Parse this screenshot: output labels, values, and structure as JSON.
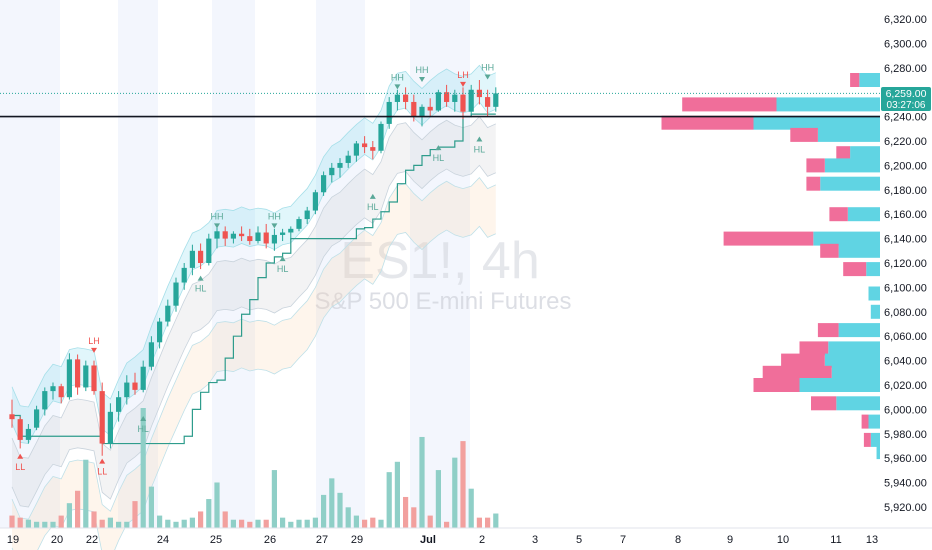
{
  "chart_data": {
    "type": "candlestick",
    "watermark": {
      "symbol": "ES1!, 4h",
      "description": "S&P 500 E-mini Futures"
    },
    "y_axis": {
      "ticks": [
        5920,
        5940,
        5960,
        5980,
        6000,
        6020,
        6040,
        6060,
        6080,
        6100,
        6120,
        6140,
        6160,
        6180,
        6200,
        6220,
        6240,
        6260,
        6280,
        6300,
        6320
      ],
      "tick_labels": [
        "5,920.00",
        "5,940.00",
        "5,960.00",
        "5,980.00",
        "6,000.00",
        "6,020.00",
        "6,040.00",
        "6,060.00",
        "6,080.00",
        "6,100.00",
        "6,120.00",
        "6,140.00",
        "6,160.00",
        "6,180.00",
        "6,200.00",
        "6,220.00",
        "6,240.00",
        "6,260.00",
        "6,280.00",
        "6,300.00",
        "6,320.00"
      ],
      "range": [
        5912,
        6335
      ]
    },
    "x_axis": {
      "tick_labels": [
        "19",
        "20",
        "22",
        "24",
        "25",
        "26",
        "27",
        "29",
        "Jul",
        "2",
        "3",
        "5",
        "7",
        "8",
        "9",
        "10",
        "11",
        "13"
      ]
    },
    "price_badge": {
      "price": "6,259.00",
      "countdown": "03:27:06",
      "color": "#26a69a"
    },
    "horizontal_line": {
      "price": 6240,
      "color": "#131722"
    },
    "colors": {
      "up": "#26a69a",
      "down": "#ef5350",
      "vol_up": "#8fcfc7",
      "vol_down": "#f2a09e",
      "vp_up": "#60d4e3",
      "vp_down": "#f06e9a",
      "vp_up_light": "#8fe4ee",
      "vp_down_light": "#f5a8c3"
    },
    "candles": [
      [
        5996,
        6008,
        5985,
        5992
      ],
      [
        5992,
        5994,
        5968,
        5975
      ],
      [
        5975,
        5988,
        5972,
        5984
      ],
      [
        5985,
        6003,
        5983,
        6000
      ],
      [
        6000,
        6018,
        5995,
        6015
      ],
      [
        6015,
        6022,
        6008,
        6019
      ],
      [
        6019,
        6021,
        6005,
        6010
      ],
      [
        6010,
        6046,
        6008,
        6041
      ],
      [
        6041,
        6045,
        6012,
        6018
      ],
      [
        6018,
        6040,
        6015,
        6036
      ],
      [
        6036,
        6040,
        6012,
        6015
      ],
      [
        6015,
        6022,
        5962,
        5972
      ],
      [
        5972,
        6005,
        5968,
        5998
      ],
      [
        5998,
        6015,
        5990,
        6010
      ],
      [
        6010,
        6028,
        6004,
        6022
      ],
      [
        6022,
        6030,
        6012,
        6016
      ],
      [
        6016,
        6040,
        6014,
        6035
      ],
      [
        6035,
        6060,
        6032,
        6055
      ],
      [
        6055,
        6075,
        6050,
        6072
      ],
      [
        6072,
        6090,
        6068,
        6085
      ],
      [
        6085,
        6108,
        6080,
        6104
      ],
      [
        6104,
        6120,
        6098,
        6116
      ],
      [
        6116,
        6135,
        6110,
        6130
      ],
      [
        6130,
        6136,
        6115,
        6120
      ],
      [
        6120,
        6144,
        6118,
        6140
      ],
      [
        6140,
        6150,
        6132,
        6146
      ],
      [
        6146,
        6150,
        6134,
        6140
      ],
      [
        6140,
        6146,
        6136,
        6144
      ],
      [
        6144,
        6150,
        6138,
        6142
      ],
      [
        6142,
        6148,
        6135,
        6138
      ],
      [
        6138,
        6150,
        6136,
        6145
      ],
      [
        6145,
        6152,
        6132,
        6136
      ],
      [
        6136,
        6148,
        6130,
        6143
      ],
      [
        6143,
        6148,
        6138,
        6145
      ],
      [
        6145,
        6150,
        6139,
        6148
      ],
      [
        6148,
        6158,
        6146,
        6156
      ],
      [
        6156,
        6166,
        6152,
        6163
      ],
      [
        6163,
        6180,
        6160,
        6178
      ],
      [
        6178,
        6195,
        6175,
        6192
      ],
      [
        6192,
        6202,
        6186,
        6198
      ],
      [
        6198,
        6206,
        6190,
        6202
      ],
      [
        6202,
        6212,
        6198,
        6208
      ],
      [
        6208,
        6220,
        6203,
        6218
      ],
      [
        6218,
        6224,
        6210,
        6215
      ],
      [
        6215,
        6220,
        6205,
        6212
      ],
      [
        6212,
        6236,
        6210,
        6234
      ],
      [
        6234,
        6256,
        6230,
        6252
      ],
      [
        6252,
        6262,
        6245,
        6258
      ],
      [
        6258,
        6264,
        6246,
        6252
      ],
      [
        6252,
        6258,
        6236,
        6240
      ],
      [
        6240,
        6250,
        6232,
        6248
      ],
      [
        6248,
        6255,
        6240,
        6245
      ],
      [
        6245,
        6262,
        6244,
        6260
      ],
      [
        6260,
        6266,
        6248,
        6252
      ],
      [
        6252,
        6262,
        6244,
        6258
      ],
      [
        6258,
        6264,
        6238,
        6244
      ],
      [
        6244,
        6266,
        6240,
        6262
      ],
      [
        6262,
        6270,
        6250,
        6256
      ],
      [
        6256,
        6262,
        6240,
        6248
      ],
      [
        6248,
        6264,
        6244,
        6259
      ]
    ],
    "volume": [
      6,
      5,
      4,
      3,
      3,
      3,
      6,
      12,
      18,
      33,
      8,
      4,
      5,
      3,
      3,
      13,
      58,
      20,
      6,
      4,
      3,
      4,
      5,
      8,
      14,
      22,
      8,
      4,
      4,
      3,
      4,
      4,
      28,
      5,
      3,
      4,
      4,
      5,
      16,
      24,
      17,
      10,
      6,
      4,
      5,
      4,
      27,
      32,
      15,
      10,
      44,
      6,
      28,
      3,
      34,
      42,
      19,
      5,
      5,
      7
    ],
    "volume_profile": [
      {
        "price": 6270,
        "up": 18,
        "down": 8
      },
      {
        "price": 6250,
        "up": 90,
        "down": 82
      },
      {
        "price": 6235,
        "up": 110,
        "down": 80
      },
      {
        "price": 6225,
        "up": 54,
        "down": 24
      },
      {
        "price": 6210,
        "up": 26,
        "down": 12
      },
      {
        "price": 6200,
        "up": 48,
        "down": 16
      },
      {
        "price": 6185,
        "up": 52,
        "down": 12
      },
      {
        "price": 6160,
        "up": 28,
        "down": 16
      },
      {
        "price": 6140,
        "up": 58,
        "down": 78
      },
      {
        "price": 6130,
        "up": 36,
        "down": 16
      },
      {
        "price": 6115,
        "up": 12,
        "down": 20
      },
      {
        "price": 6095,
        "up": 10,
        "down": 0
      },
      {
        "price": 6080,
        "up": 8,
        "down": 0
      },
      {
        "price": 6065,
        "up": 36,
        "down": 18
      },
      {
        "price": 6050,
        "up": 45,
        "down": 25
      },
      {
        "price": 6040,
        "up": 48,
        "down": 38
      },
      {
        "price": 6030,
        "up": 42,
        "down": 60
      },
      {
        "price": 6020,
        "up": 70,
        "down": 40
      },
      {
        "price": 6005,
        "up": 38,
        "down": 22
      },
      {
        "price": 5990,
        "up": 10,
        "down": 6
      },
      {
        "price": 5975,
        "up": 8,
        "down": 6
      },
      {
        "price": 5965,
        "up": 3,
        "down": 0
      }
    ],
    "swing_labels": [
      {
        "text": "LL",
        "candle": 1,
        "price": 5962,
        "pos": "below",
        "kind": "low"
      },
      {
        "text": "LH",
        "candle": 10,
        "price": 6048,
        "pos": "above",
        "kind": "high"
      },
      {
        "text": "LL",
        "candle": 11,
        "price": 5958,
        "pos": "below",
        "kind": "low"
      },
      {
        "text": "HL",
        "candle": 16,
        "price": 5993,
        "pos": "below",
        "kind": "low"
      },
      {
        "text": "HH",
        "candle": 25,
        "price": 6150,
        "pos": "above",
        "kind": "high"
      },
      {
        "text": "HL",
        "candle": 23,
        "price": 6108,
        "pos": "below",
        "kind": "low"
      },
      {
        "text": "HH",
        "candle": 32,
        "price": 6150,
        "pos": "above",
        "kind": "high"
      },
      {
        "text": "HL",
        "candle": 33,
        "price": 6124,
        "pos": "below",
        "kind": "low"
      },
      {
        "text": "HL",
        "candle": 44,
        "price": 6175,
        "pos": "below",
        "kind": "low"
      },
      {
        "text": "HH",
        "candle": 47,
        "price": 6264,
        "pos": "above",
        "kind": "high"
      },
      {
        "text": "HH",
        "candle": 50,
        "price": 6270,
        "pos": "above",
        "kind": "high"
      },
      {
        "text": "HL",
        "candle": 52,
        "price": 6215,
        "pos": "below",
        "kind": "low"
      },
      {
        "text": "HL",
        "candle": 57,
        "price": 6222,
        "pos": "below",
        "kind": "low"
      },
      {
        "text": "LH",
        "candle": 55,
        "price": 6266,
        "pos": "above",
        "kind": "high"
      },
      {
        "text": "HH",
        "candle": 58,
        "price": 6272,
        "pos": "above",
        "kind": "high"
      }
    ]
  }
}
